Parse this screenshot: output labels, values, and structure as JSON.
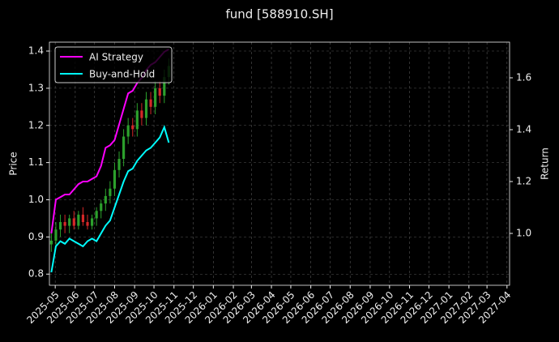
{
  "chart_data": {
    "type": "candlestick",
    "title": "fund [588910.SH]",
    "ylabel": "Price",
    "y2label": "Return",
    "x": [
      "2025-04-25",
      "2025-05-02",
      "2025-05-09",
      "2025-05-16",
      "2025-05-23",
      "2025-05-30",
      "2025-06-06",
      "2025-06-13",
      "2025-06-20",
      "2025-06-27",
      "2025-07-04",
      "2025-07-11",
      "2025-07-18",
      "2025-07-25",
      "2025-08-01",
      "2025-08-08",
      "2025-08-15",
      "2025-08-22",
      "2025-08-29",
      "2025-09-05",
      "2025-09-12",
      "2025-09-19",
      "2025-09-26",
      "2025-10-03",
      "2025-10-10",
      "2025-10-17",
      "2025-10-24"
    ],
    "open": [
      0.88,
      0.89,
      0.92,
      0.94,
      0.93,
      0.95,
      0.93,
      0.96,
      0.94,
      0.93,
      0.95,
      0.97,
      0.99,
      1.01,
      1.03,
      1.08,
      1.11,
      1.17,
      1.2,
      1.19,
      1.24,
      1.22,
      1.27,
      1.25,
      1.3,
      1.28,
      1.33
    ],
    "high": [
      0.91,
      0.94,
      0.96,
      0.96,
      0.96,
      0.97,
      0.97,
      0.98,
      0.96,
      0.96,
      0.98,
      1.0,
      1.03,
      1.05,
      1.1,
      1.13,
      1.19,
      1.22,
      1.22,
      1.26,
      1.26,
      1.29,
      1.29,
      1.32,
      1.32,
      1.35,
      1.38
    ],
    "low": [
      0.86,
      0.87,
      0.9,
      0.91,
      0.91,
      0.92,
      0.92,
      0.93,
      0.92,
      0.92,
      0.93,
      0.95,
      0.97,
      0.99,
      1.01,
      1.06,
      1.09,
      1.15,
      1.17,
      1.17,
      1.2,
      1.2,
      1.23,
      1.23,
      1.26,
      1.26,
      1.31
    ],
    "close": [
      0.89,
      0.92,
      0.94,
      0.93,
      0.95,
      0.93,
      0.96,
      0.94,
      0.93,
      0.95,
      0.97,
      0.99,
      1.01,
      1.03,
      1.08,
      1.11,
      1.17,
      1.2,
      1.19,
      1.24,
      1.22,
      1.27,
      1.25,
      1.3,
      1.28,
      1.33,
      1.36
    ],
    "up_color": "#2ca02c",
    "down_color": "#d62728",
    "series": [
      {
        "name": "AI Strategy",
        "color": "#ff00ff",
        "axis": "y2",
        "values": [
          1.0,
          1.13,
          1.14,
          1.15,
          1.15,
          1.17,
          1.19,
          1.2,
          1.2,
          1.21,
          1.22,
          1.26,
          1.33,
          1.34,
          1.36,
          1.42,
          1.48,
          1.54,
          1.55,
          1.58,
          1.6,
          1.63,
          1.65,
          1.66,
          1.68,
          1.7,
          1.71
        ]
      },
      {
        "name": "Buy-and-Hold",
        "color": "#00ffff",
        "axis": "y2",
        "values": [
          0.85,
          0.95,
          0.97,
          0.96,
          0.98,
          0.97,
          0.96,
          0.95,
          0.97,
          0.98,
          0.97,
          1.0,
          1.03,
          1.05,
          1.1,
          1.15,
          1.2,
          1.24,
          1.25,
          1.28,
          1.3,
          1.32,
          1.33,
          1.35,
          1.37,
          1.41,
          1.35
        ]
      }
    ],
    "ylim": [
      0.77,
      1.424
    ],
    "yticks": [
      0.8,
      0.9,
      {
        "value": 1,
        "label": "1.0"
      },
      1.1,
      1.2,
      1.3,
      1.4
    ],
    "y2lim": [
      0.8,
      1.7375
    ],
    "y2ticks": [
      {
        "value": 1,
        "label": "1.0"
      },
      1.2,
      1.4,
      1.6
    ],
    "xlim": [
      "2025-04-22",
      "2027-04-05"
    ],
    "xticks": [
      {
        "value": "2025-05-01",
        "label": "2025-05"
      },
      {
        "value": "2025-06-01",
        "label": "2025-06"
      },
      {
        "value": "2025-07-01",
        "label": "2025-07"
      },
      {
        "value": "2025-08-01",
        "label": "2025-08"
      },
      {
        "value": "2025-09-01",
        "label": "2025-09"
      },
      {
        "value": "2025-10-01",
        "label": "2025-10"
      },
      {
        "value": "2025-11-01",
        "label": "2025-11"
      },
      {
        "value": "2025-12-01",
        "label": "2025-12"
      },
      {
        "value": "2026-01-01",
        "label": "2026-01"
      },
      {
        "value": "2026-02-01",
        "label": "2026-02"
      },
      {
        "value": "2026-03-01",
        "label": "2026-03"
      },
      {
        "value": "2026-04-01",
        "label": "2026-04"
      },
      {
        "value": "2026-05-01",
        "label": "2026-05"
      },
      {
        "value": "2026-06-01",
        "label": "2026-06"
      },
      {
        "value": "2026-07-01",
        "label": "2026-07"
      },
      {
        "value": "2026-08-01",
        "label": "2026-08"
      },
      {
        "value": "2026-09-01",
        "label": "2026-09"
      },
      {
        "value": "2026-10-01",
        "label": "2026-10"
      },
      {
        "value": "2026-11-01",
        "label": "2026-11"
      },
      {
        "value": "2026-12-01",
        "label": "2026-12"
      },
      {
        "value": "2027-01-01",
        "label": "2027-01"
      },
      {
        "value": "2027-02-01",
        "label": "2027-02"
      },
      {
        "value": "2027-03-01",
        "label": "2027-03"
      },
      {
        "value": "2027-04-01",
        "label": "2027-04"
      }
    ],
    "grid": true,
    "legend": "upper left"
  }
}
